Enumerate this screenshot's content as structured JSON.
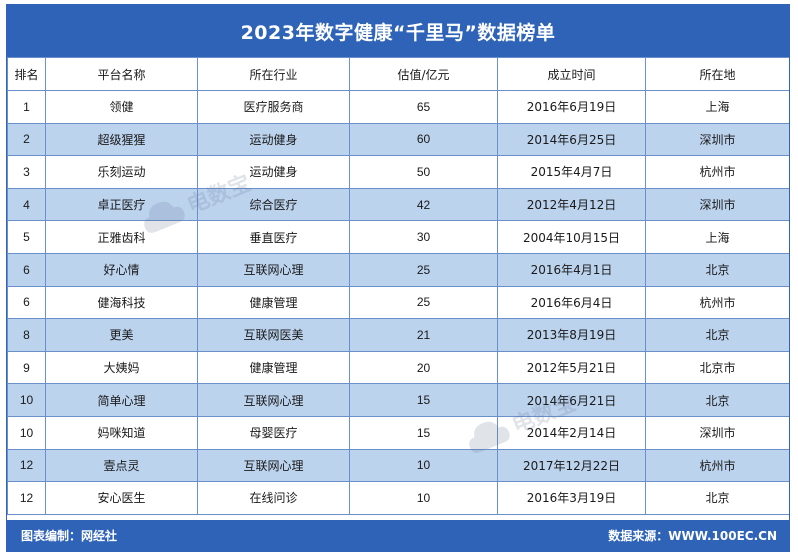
{
  "title": "2023年数字健康“千里马”数据榜单",
  "headers": [
    "排名",
    "平台名称",
    "所在行业",
    "估值/亿元",
    "成立时间",
    "所在地"
  ],
  "rows": [
    [
      "1",
      "领健",
      "医疗服务商",
      "65",
      "2016年6月19日",
      "上海"
    ],
    [
      "2",
      "超级猩猩",
      "运动健身",
      "60",
      "2014年6月25日",
      "深圳市"
    ],
    [
      "3",
      "乐刻运动",
      "运动健身",
      "50",
      "2015年4月7日",
      "杭州市"
    ],
    [
      "4",
      "卓正医疗",
      "综合医疗",
      "42",
      "2012年4月12日",
      "深圳市"
    ],
    [
      "5",
      "正雅齿科",
      "垂直医疗",
      "30",
      "2004年10月15日",
      "上海"
    ],
    [
      "6",
      "好心情",
      "互联网心理",
      "25",
      "2016年4月1日",
      "北京"
    ],
    [
      "6",
      "健海科技",
      "健康管理",
      "25",
      "2016年6月4日",
      "杭州市"
    ],
    [
      "8",
      "更美",
      "互联网医美",
      "21",
      "2013年8月19日",
      "北京"
    ],
    [
      "9",
      "大姨妈",
      "健康管理",
      "20",
      "2012年5月21日",
      "北京市"
    ],
    [
      "10",
      "简单心理",
      "互联网心理",
      "15",
      "2014年6月21日",
      "北京"
    ],
    [
      "10",
      "妈咪知道",
      "母婴医疗",
      "15",
      "2014年2月14日",
      "深圳市"
    ],
    [
      "12",
      "壹点灵",
      "互联网心理",
      "10",
      "2017年12月22日",
      "杭州市"
    ],
    [
      "12",
      "安心医生",
      "在线问诊",
      "10",
      "2016年3月19日",
      "北京"
    ]
  ],
  "footer": {
    "left": "图表编制：网经社",
    "right": "数据来源：WWW.100EC.CN"
  },
  "watermark": {
    "logo": "ebrun-cloud-logo",
    "text": "电数宝"
  },
  "colors": {
    "header_bar": "#2e63b8",
    "row_alt": "#bcd3ee",
    "border": "#6a8fca"
  }
}
